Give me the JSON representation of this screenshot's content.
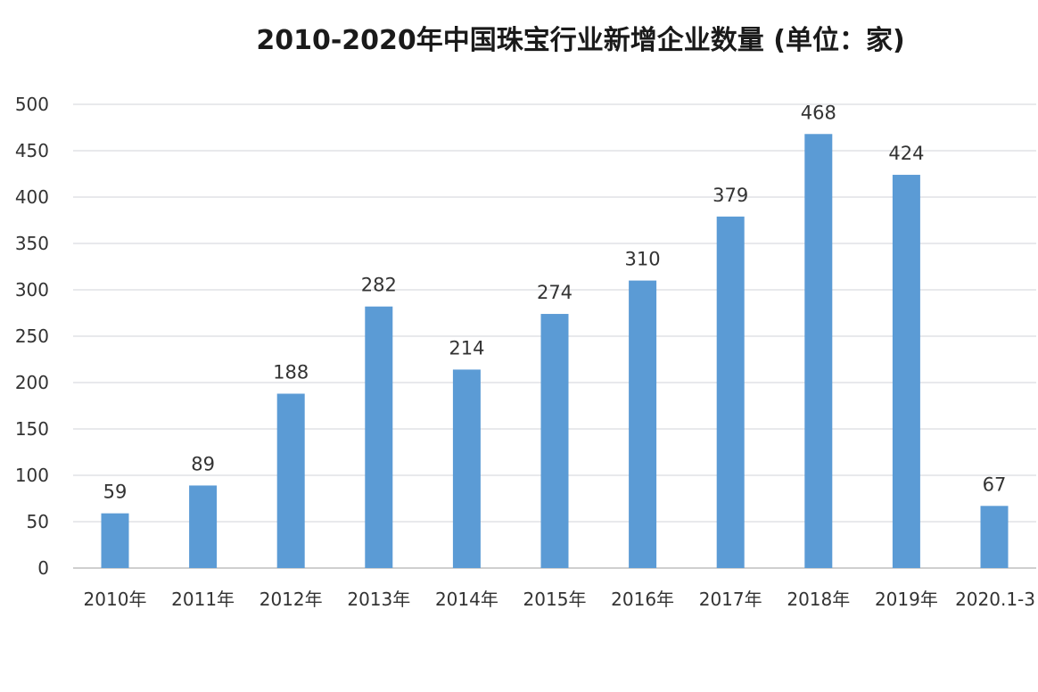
{
  "chart_data": {
    "type": "bar",
    "title": "2010-2020年中国珠宝行业新增企业数量 (单位：家)",
    "categories": [
      "2010年",
      "2011年",
      "2012年",
      "2013年",
      "2014年",
      "2015年",
      "2016年",
      "2017年",
      "2018年",
      "2019年",
      "2020.1-3"
    ],
    "values": [
      59,
      89,
      188,
      282,
      214,
      274,
      310,
      379,
      468,
      424,
      67
    ],
    "ylim": [
      0,
      500
    ],
    "yticks": [
      0,
      50,
      100,
      150,
      200,
      250,
      300,
      350,
      400,
      450,
      500
    ],
    "grid": true,
    "data_labels": true,
    "colors": {
      "bar": "#5b9bd5",
      "grid": "#d0d3d9",
      "axis": "#bfbfbf"
    }
  }
}
